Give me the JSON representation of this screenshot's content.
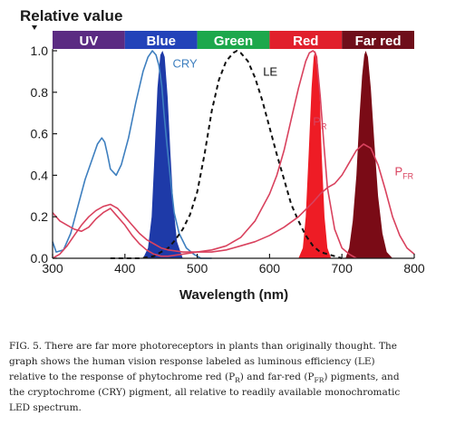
{
  "chart_data": {
    "type": "line",
    "ylabel": "Relative value",
    "xlabel": "Wavelength (nm)",
    "xlim": [
      300,
      800
    ],
    "ylim": [
      0,
      1.0
    ],
    "x_ticks": [
      "300",
      "400",
      "500",
      "600",
      "700",
      "800"
    ],
    "y_ticks": [
      "0.0",
      "0.2",
      "0.4",
      "0.6",
      "0.8",
      "1.0"
    ],
    "grid": false,
    "spectrum_bands": [
      {
        "label": "UV",
        "range": [
          300,
          400
        ],
        "color": "#5b2b82"
      },
      {
        "label": "Blue",
        "range": [
          400,
          500
        ],
        "color": "#2343b9"
      },
      {
        "label": "Green",
        "range": [
          500,
          600
        ],
        "color": "#1da84c"
      },
      {
        "label": "Red",
        "range": [
          600,
          700
        ],
        "color": "#e1202c"
      },
      {
        "label": "Far red",
        "range": [
          700,
          800
        ],
        "color": "#6f0e1a"
      }
    ],
    "led_peaks": [
      {
        "name": "Blue",
        "color": "#1e3aa8",
        "points": [
          [
            425,
            0
          ],
          [
            432,
            0.05
          ],
          [
            437,
            0.2
          ],
          [
            441,
            0.5
          ],
          [
            445,
            0.82
          ],
          [
            449,
            0.98
          ],
          [
            452,
            1.0
          ],
          [
            455,
            0.97
          ],
          [
            459,
            0.78
          ],
          [
            463,
            0.5
          ],
          [
            467,
            0.25
          ],
          [
            472,
            0.08
          ],
          [
            480,
            0
          ]
        ]
      },
      {
        "name": "Red",
        "color": "#ee1c25",
        "points": [
          [
            640,
            0
          ],
          [
            646,
            0.05
          ],
          [
            650,
            0.2
          ],
          [
            654,
            0.5
          ],
          [
            658,
            0.82
          ],
          [
            661,
            0.97
          ],
          [
            663,
            1.0
          ],
          [
            666,
            0.97
          ],
          [
            669,
            0.82
          ],
          [
            672,
            0.5
          ],
          [
            676,
            0.2
          ],
          [
            680,
            0.05
          ],
          [
            685,
            0
          ]
        ]
      },
      {
        "name": "Far red",
        "color": "#7a0b16",
        "points": [
          [
            705,
            0
          ],
          [
            710,
            0.05
          ],
          [
            715,
            0.18
          ],
          [
            720,
            0.4
          ],
          [
            724,
            0.67
          ],
          [
            728,
            0.88
          ],
          [
            731,
            0.98
          ],
          [
            733,
            1.0
          ],
          [
            736,
            0.97
          ],
          [
            740,
            0.82
          ],
          [
            745,
            0.55
          ],
          [
            750,
            0.3
          ],
          [
            756,
            0.12
          ],
          [
            762,
            0.03
          ],
          [
            770,
            0
          ]
        ]
      }
    ],
    "series": [
      {
        "name": "CRY",
        "color": "#3e7fbf",
        "style": "solid",
        "x": [
          300,
          305,
          315,
          325,
          335,
          345,
          355,
          362,
          368,
          372,
          376,
          380,
          388,
          395,
          405,
          415,
          425,
          432,
          438,
          443,
          447,
          451,
          454,
          458,
          463,
          468,
          475,
          485,
          495,
          505,
          520
        ],
        "y": [
          0.08,
          0.03,
          0.04,
          0.12,
          0.25,
          0.38,
          0.48,
          0.55,
          0.58,
          0.56,
          0.5,
          0.43,
          0.4,
          0.45,
          0.58,
          0.75,
          0.9,
          0.97,
          1.0,
          0.98,
          0.93,
          0.83,
          0.7,
          0.55,
          0.38,
          0.22,
          0.12,
          0.05,
          0.02,
          0.0,
          0.0
        ]
      },
      {
        "name": "LE",
        "color": "#111111",
        "style": "dashed",
        "x": [
          380,
          420,
          440,
          460,
          470,
          480,
          490,
          500,
          510,
          520,
          530,
          540,
          550,
          555,
          560,
          570,
          580,
          590,
          600,
          610,
          620,
          630,
          640,
          650,
          660,
          670,
          680,
          690,
          700
        ],
        "y": [
          0.0,
          0.0,
          0.01,
          0.05,
          0.09,
          0.14,
          0.21,
          0.32,
          0.5,
          0.71,
          0.86,
          0.95,
          0.99,
          1.0,
          0.99,
          0.95,
          0.87,
          0.76,
          0.63,
          0.5,
          0.38,
          0.26,
          0.18,
          0.11,
          0.06,
          0.03,
          0.02,
          0.01,
          0.0
        ]
      },
      {
        "name": "PR",
        "label_parts": [
          "P",
          "R"
        ],
        "color": "#d9425e",
        "style": "solid",
        "x": [
          300,
          310,
          320,
          330,
          340,
          350,
          360,
          370,
          375,
          380,
          390,
          400,
          410,
          420,
          430,
          440,
          450,
          460,
          480,
          500,
          520,
          540,
          560,
          580,
          600,
          610,
          620,
          630,
          640,
          650,
          655,
          660,
          663,
          666,
          670,
          675,
          680,
          690,
          700,
          710,
          720
        ],
        "y": [
          0.22,
          0.18,
          0.16,
          0.14,
          0.13,
          0.15,
          0.19,
          0.22,
          0.23,
          0.24,
          0.2,
          0.16,
          0.11,
          0.07,
          0.04,
          0.02,
          0.01,
          0.01,
          0.02,
          0.03,
          0.04,
          0.06,
          0.1,
          0.18,
          0.31,
          0.4,
          0.52,
          0.67,
          0.82,
          0.95,
          0.99,
          1.0,
          0.99,
          0.93,
          0.78,
          0.55,
          0.34,
          0.14,
          0.05,
          0.02,
          0.0
        ]
      },
      {
        "name": "PFR",
        "label_parts": [
          "P",
          "FR"
        ],
        "color": "#d9425e",
        "style": "solid",
        "x": [
          300,
          310,
          320,
          330,
          340,
          350,
          360,
          370,
          380,
          390,
          400,
          410,
          420,
          430,
          440,
          450,
          460,
          480,
          500,
          520,
          540,
          560,
          580,
          600,
          620,
          640,
          660,
          670,
          680,
          690,
          700,
          710,
          720,
          730,
          740,
          750,
          760,
          770,
          780,
          790,
          800
        ],
        "y": [
          0.0,
          0.02,
          0.06,
          0.11,
          0.16,
          0.2,
          0.23,
          0.25,
          0.26,
          0.24,
          0.2,
          0.16,
          0.12,
          0.09,
          0.07,
          0.05,
          0.04,
          0.03,
          0.03,
          0.03,
          0.04,
          0.06,
          0.08,
          0.11,
          0.15,
          0.2,
          0.27,
          0.31,
          0.34,
          0.36,
          0.4,
          0.46,
          0.52,
          0.55,
          0.53,
          0.45,
          0.33,
          0.2,
          0.11,
          0.05,
          0.02
        ]
      }
    ],
    "annotations": [
      {
        "text": "CRY",
        "x": 466,
        "y": 0.92
      },
      {
        "text": "LE",
        "x": 591,
        "y": 0.88
      },
      {
        "text": "PR",
        "x": 660,
        "y": 0.64
      },
      {
        "text": "PFR",
        "x": 773,
        "y": 0.4
      }
    ]
  },
  "caption": "FIG. 5. There are far more photoreceptors in plants than originally thought. The graph shows the human vision response labeled as luminous efficiency (LE) relative to the response of phytochrome red (PR) and far-red (PFR) pigments, and the cryptochrome (CRY) pigment, all relative to readily available monochromatic LED spectrum.",
  "caption_lines": [
    [
      {
        "t": "FIG. 5. There are far more photoreceptors in plants than originally thought. The"
      }
    ],
    [
      {
        "t": "graph shows the human vision response labeled as luminous efficiency (LE)"
      }
    ],
    [
      {
        "t": "relative to the response of phytochrome red (P"
      },
      {
        "t": "R",
        "sub": true
      },
      {
        "t": ") and far-red (P"
      },
      {
        "t": "FR",
        "sub": true
      },
      {
        "t": ") pigments, and"
      }
    ],
    [
      {
        "t": "the cryptochrome (CRY) pigment, all relative to readily available monochromatic"
      }
    ],
    [
      {
        "t": "LED spectrum."
      }
    ]
  ]
}
